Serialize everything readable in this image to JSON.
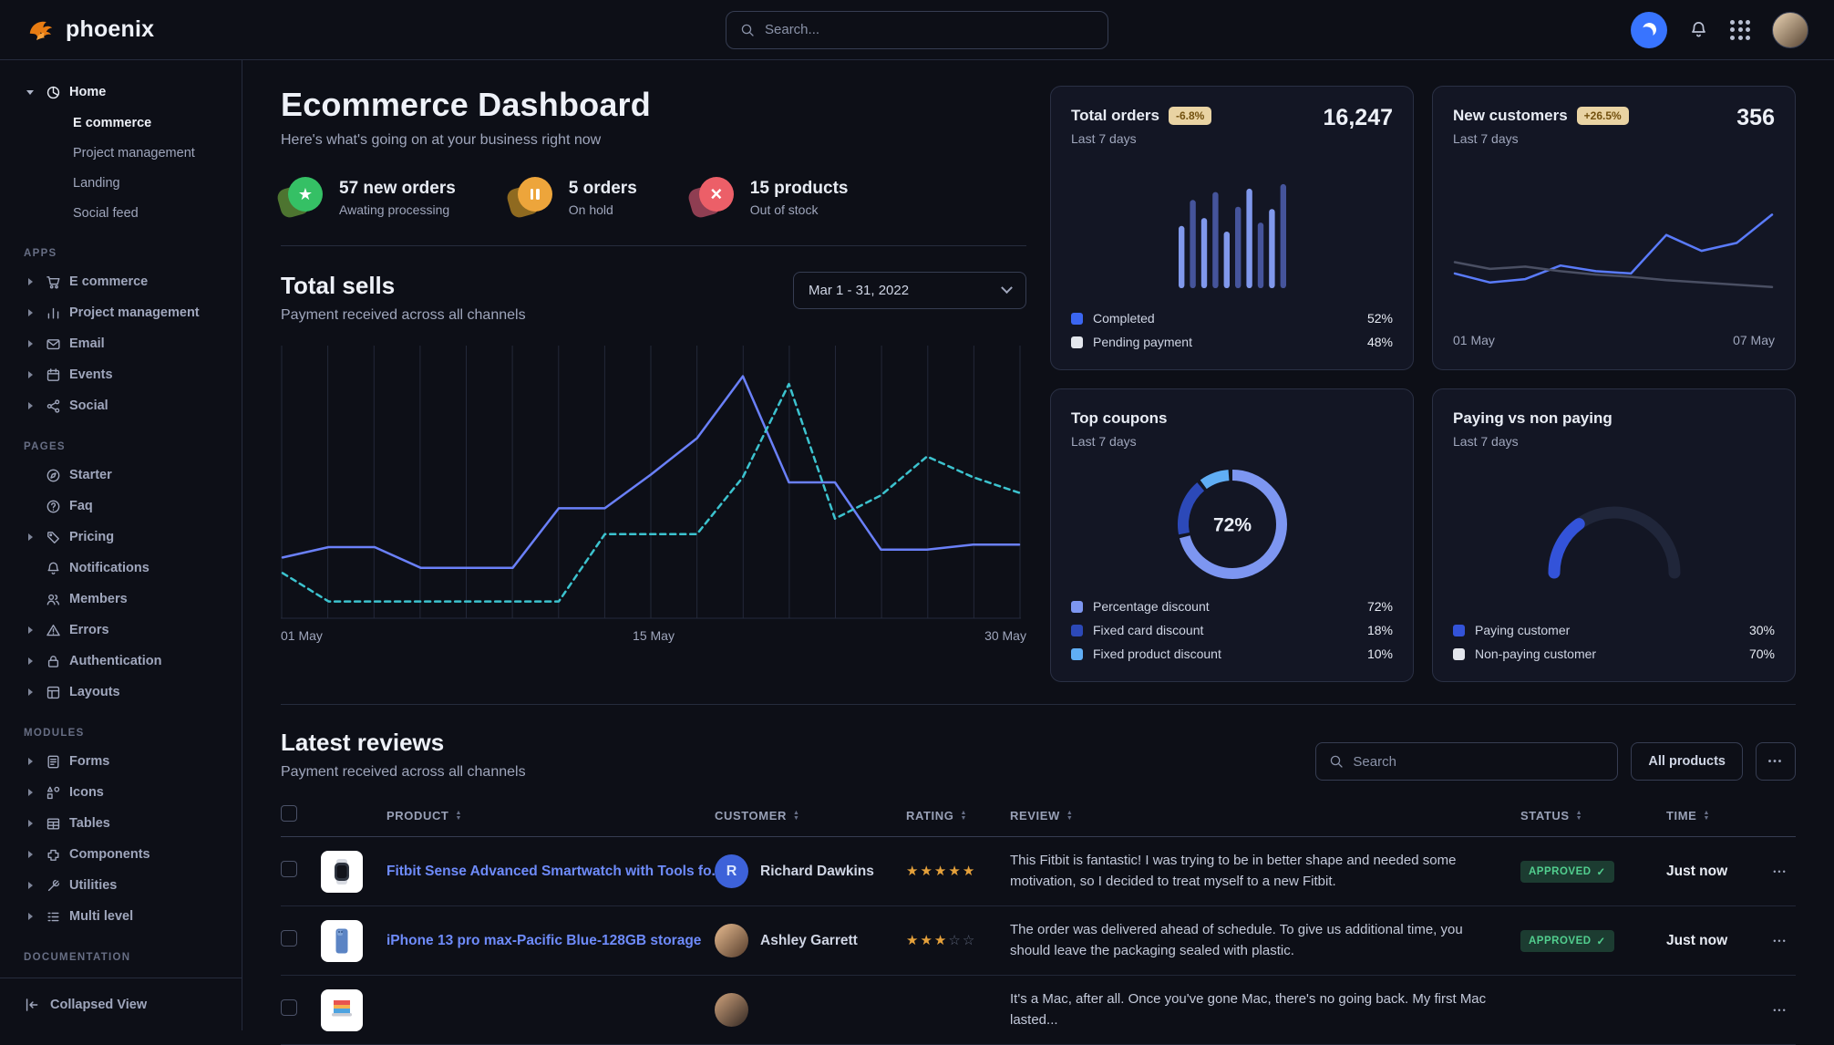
{
  "colors": {
    "primary": "#3874ff",
    "badge_bg": "#e9d3a3",
    "badge_text": "#73510f",
    "approved_bg": "#1c3c31",
    "approved_text": "#52cf8f",
    "star": "#e5a13b",
    "link": "#6e8bfb"
  },
  "brand": {
    "name": "phoenix"
  },
  "navbar": {
    "search_placeholder": "Search..."
  },
  "sidebar": {
    "footer_label": "Collapsed View",
    "sections": [
      {
        "label": "",
        "items": [
          {
            "label": "Home",
            "icon": "chart-pie",
            "expandable": true,
            "expanded": true,
            "active": true,
            "children": [
              {
                "label": "E commerce",
                "active": true
              },
              {
                "label": "Project management"
              },
              {
                "label": "Landing"
              },
              {
                "label": "Social feed"
              }
            ]
          }
        ]
      },
      {
        "label": "APPS",
        "items": [
          {
            "label": "E commerce",
            "icon": "cart",
            "expandable": true
          },
          {
            "label": "Project management",
            "icon": "bar-chart",
            "expandable": true
          },
          {
            "label": "Email",
            "icon": "mail",
            "expandable": true
          },
          {
            "label": "Events",
            "icon": "calendar",
            "expandable": true
          },
          {
            "label": "Social",
            "icon": "share",
            "expandable": true
          }
        ]
      },
      {
        "label": "PAGES",
        "items": [
          {
            "label": "Starter",
            "icon": "compass",
            "expandable": false
          },
          {
            "label": "Faq",
            "icon": "question",
            "expandable": false
          },
          {
            "label": "Pricing",
            "icon": "tag",
            "expandable": true
          },
          {
            "label": "Notifications",
            "icon": "bell",
            "expandable": false
          },
          {
            "label": "Members",
            "icon": "users",
            "expandable": false
          },
          {
            "label": "Errors",
            "icon": "alert",
            "expandable": true
          },
          {
            "label": "Authentication",
            "icon": "lock",
            "expandable": true
          },
          {
            "label": "Layouts",
            "icon": "layout",
            "expandable": true
          }
        ]
      },
      {
        "label": "MODULES",
        "items": [
          {
            "label": "Forms",
            "icon": "form",
            "expandable": true
          },
          {
            "label": "Icons",
            "icon": "shapes",
            "expandable": true
          },
          {
            "label": "Tables",
            "icon": "table",
            "expandable": true
          },
          {
            "label": "Components",
            "icon": "puzzle",
            "expandable": true
          },
          {
            "label": "Utilities",
            "icon": "tools",
            "expandable": true
          },
          {
            "label": "Multi level",
            "icon": "list",
            "expandable": true
          }
        ]
      },
      {
        "label": "DOCUMENTATION",
        "items": []
      }
    ]
  },
  "page": {
    "title": "Ecommerce Dashboard",
    "subtitle": "Here's what's going on at your business right now"
  },
  "stats": [
    {
      "label": "57 new orders",
      "caption": "Awating processing",
      "icon": "star",
      "front": "#35c065",
      "back": "#4d7430"
    },
    {
      "label": "5 orders",
      "caption": "On hold",
      "icon": "pause",
      "front": "#eda53b",
      "back": "#8f6a20"
    },
    {
      "label": "15 products",
      "caption": "Out of stock",
      "icon": "x",
      "front": "#ec5f68",
      "back": "#8f3e52"
    }
  ],
  "sells": {
    "title": "Total sells",
    "subtitle": "Payment received across all channels",
    "date_range": "Mar 1 - 31, 2022"
  },
  "cards": {
    "total_orders": {
      "title": "Total orders",
      "badge": "-6.8%",
      "period": "Last 7 days",
      "value": "16,247"
    },
    "new_customers": {
      "title": "New customers",
      "badge": "+26.5%",
      "period": "Last 7 days",
      "value": "356"
    },
    "top_coupons": {
      "title": "Top coupons",
      "period": "Last 7 days"
    },
    "paying": {
      "title": "Paying vs non paying",
      "period": "Last 7 days"
    }
  },
  "chart_data": [
    {
      "id": "total-sells",
      "type": "line",
      "title": "Total sells",
      "x_ticks": [
        "01 May",
        "15 May",
        "30 May"
      ],
      "ylim": [
        0,
        100
      ],
      "grid": "vertical",
      "series": [
        {
          "name": "current",
          "style": "solid",
          "color": "#6a80f9",
          "values": [
            21,
            25,
            25,
            17,
            17,
            17,
            40,
            40,
            53,
            67,
            91,
            50,
            50,
            24,
            24,
            26,
            26
          ]
        },
        {
          "name": "previous",
          "style": "dashed",
          "color": "#3cc3cf",
          "values": [
            15,
            4,
            4,
            4,
            4,
            4,
            4,
            30,
            30,
            30,
            52,
            88,
            36,
            45,
            60,
            52,
            46
          ]
        }
      ]
    },
    {
      "id": "total-orders",
      "type": "bar",
      "values": [
        55,
        78,
        62,
        85,
        50,
        72,
        88,
        58,
        70,
        92
      ],
      "colors": [
        "#8098ec",
        "#45549b"
      ],
      "ylim": [
        0,
        100
      ],
      "legend": [
        {
          "label": "Completed",
          "value": "52%",
          "color": "#3b66f1"
        },
        {
          "label": "Pending payment",
          "value": "48%",
          "color": "#e3e6ed"
        }
      ]
    },
    {
      "id": "new-customers",
      "type": "line",
      "x_ticks": [
        "01 May",
        "07 May"
      ],
      "ylim": [
        0,
        100
      ],
      "series": [
        {
          "name": "current",
          "style": "solid",
          "color": "#5a7bfa",
          "values": [
            38,
            30,
            33,
            45,
            40,
            38,
            72,
            58,
            65,
            90
          ]
        },
        {
          "name": "previous",
          "style": "solid",
          "color": "#4a4f63",
          "values": [
            48,
            42,
            44,
            40,
            37,
            35,
            32,
            30,
            28,
            26
          ]
        }
      ]
    },
    {
      "id": "top-coupons",
      "type": "donut",
      "center_label": "72%",
      "slices": [
        {
          "label": "Percentage discount",
          "value": 72,
          "color": "#7d96f1"
        },
        {
          "label": "Fixed card discount",
          "value": 18,
          "color": "#2c49b8"
        },
        {
          "label": "Fixed product discount",
          "value": 10,
          "color": "#60aef5"
        }
      ]
    },
    {
      "id": "paying-vs-nonpaying",
      "type": "half-gauge",
      "slices": [
        {
          "label": "Paying customer",
          "value": 30,
          "color": "#3353d9",
          "swatch": "#3353d9"
        },
        {
          "label": "Non-paying customer",
          "value": 70,
          "color": "#20263a",
          "swatch": "#e3e6ed"
        }
      ]
    }
  ],
  "reviews": {
    "title": "Latest reviews",
    "subtitle": "Payment received across all channels",
    "search_placeholder": "Search",
    "all_products_label": "All products",
    "columns": [
      "Product",
      "Customer",
      "Rating",
      "Review",
      "Status",
      "Time"
    ],
    "rows": [
      {
        "product": "Fitbit Sense Advanced Smartwatch with Tools fo...",
        "thumb": "watch",
        "customer": "Richard Dawkins",
        "avatar": {
          "type": "initial",
          "text": "R",
          "color": "#3d62d9"
        },
        "rating": 5,
        "review": "This Fitbit is fantastic! I was trying to be in better shape and needed some motivation, so I decided to treat myself to a new Fitbit.",
        "status": "APPROVED",
        "time": "Just now"
      },
      {
        "product": "iPhone 13 pro max-Pacific Blue-128GB storage",
        "thumb": "phone",
        "customer": "Ashley Garrett",
        "avatar": {
          "type": "photo",
          "colors": [
            "#caa27c",
            "#6b4f3a"
          ]
        },
        "rating": 3,
        "review": "The order was delivered ahead of schedule. To give us additional time, you should leave the packaging sealed with plastic.",
        "status": "APPROVED",
        "time": "Just now"
      },
      {
        "product": "",
        "thumb": "laptop",
        "customer": "",
        "avatar": {
          "type": "photo",
          "colors": [
            "#b08a6a",
            "#4a3a30"
          ]
        },
        "rating": null,
        "review": "It's a Mac, after all. Once you've gone Mac, there's no going back. My first Mac lasted...",
        "status": "",
        "time": ""
      }
    ]
  }
}
